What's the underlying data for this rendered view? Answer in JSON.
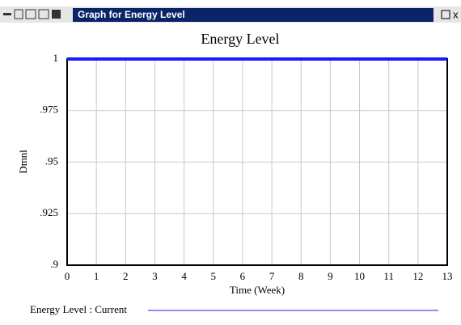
{
  "window": {
    "title": "Graph for Energy Level"
  },
  "chart_data": {
    "type": "line",
    "title": "Energy Level",
    "x_label": "Time (Week)",
    "y_label": "Dmnl",
    "x": [
      0,
      1,
      2,
      3,
      4,
      5,
      6,
      7,
      8,
      9,
      10,
      11,
      12,
      13
    ],
    "series": [
      {
        "name": "Energy Level : Current",
        "color": "#1a1aff",
        "values": [
          1,
          1,
          1,
          1,
          1,
          1,
          1,
          1,
          1,
          1,
          1,
          1,
          1,
          1
        ]
      }
    ],
    "xlim": [
      0,
      13
    ],
    "xticks": [
      0,
      1,
      2,
      3,
      4,
      5,
      6,
      7,
      8,
      9,
      10,
      11,
      12,
      13
    ],
    "ylim": [
      0.9,
      1
    ],
    "yticks": [
      {
        "value": 0.9,
        "label": ".9"
      },
      {
        "value": 0.925,
        "label": ".925"
      },
      {
        "value": 0.95,
        "label": ".95"
      },
      {
        "value": 0.975,
        "label": ".975"
      },
      1
    ],
    "grid": true
  }
}
